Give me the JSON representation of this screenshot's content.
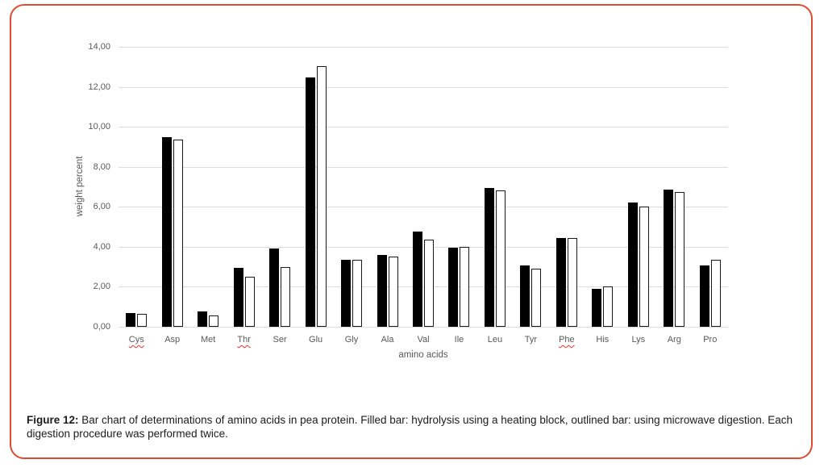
{
  "frame": {
    "border_color": "#e04a30"
  },
  "caption": {
    "label": "Figure 12:",
    "text": " Bar chart of determinations of amino acids in pea protein. Filled bar: hydrolysis using a heating block, outlined bar: using microwave digestion. Each digestion procedure was performed twice."
  },
  "chart_data": {
    "type": "bar",
    "title": "",
    "xlabel": "amino acids",
    "ylabel": "weight percent",
    "ylim": [
      0,
      14
    ],
    "ytick_step": 2,
    "ytick_labels": [
      "0,00",
      "2,00",
      "4,00",
      "6,00",
      "8,00",
      "10,00",
      "12,00",
      "14,00"
    ],
    "grid": true,
    "legend_position": "none",
    "gridline_color": "#dcdcdc",
    "label_color": "#595959",
    "categories": [
      "Cys",
      "Asp",
      "Met",
      "Thr",
      "Ser",
      "Glu",
      "Gly",
      "Ala",
      "Val",
      "Ile",
      "Leu",
      "Tyr",
      "Phe",
      "His",
      "Lys",
      "Arg",
      "Pro"
    ],
    "spellcheck_underlined_categories": [
      "Cys",
      "Thr",
      "Phe"
    ],
    "series": [
      {
        "name": "hydrolysis using a heating block",
        "style": "filled",
        "fill_color": "#000000",
        "values": [
          0.7,
          9.5,
          0.75,
          2.95,
          3.9,
          12.45,
          3.35,
          3.6,
          4.75,
          3.95,
          6.95,
          3.05,
          4.45,
          1.9,
          6.2,
          6.85,
          3.05
        ]
      },
      {
        "name": "microwave digestion",
        "style": "outlined",
        "fill_color": "#ffffff",
        "border_color": "#1a1a1a",
        "values": [
          0.65,
          9.35,
          0.55,
          2.5,
          3.0,
          13.05,
          3.35,
          3.5,
          4.35,
          4.0,
          6.8,
          2.9,
          4.45,
          2.0,
          6.0,
          6.75,
          3.35
        ]
      }
    ]
  }
}
